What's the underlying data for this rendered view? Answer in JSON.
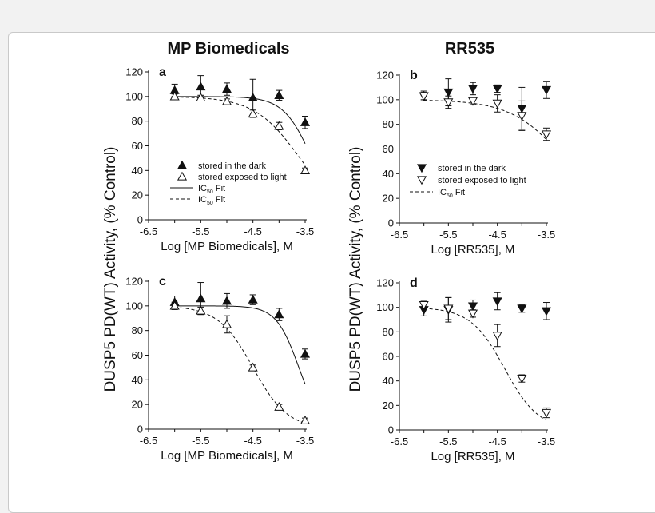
{
  "colors": {
    "ink": "#111111",
    "frame_border": "#c9c9c9",
    "background": "#ffffff"
  },
  "column_titles": [
    "MP Biomedicals",
    "RR535"
  ],
  "y_axis_label": "DUSP5 PD(WT) Activity, (% Control)",
  "chart_data": [
    {
      "id": "a",
      "type": "scatter",
      "letter": "a",
      "xlabel": "Log [MP Biomedicals], M",
      "xlim": [
        -6.5,
        -3.5
      ],
      "ylim": [
        0,
        120
      ],
      "xticks": [
        "-6.5",
        "-5.5",
        "-4.5",
        "-3.5"
      ],
      "yticks": [
        "0",
        "20",
        "40",
        "60",
        "80",
        "100",
        "120"
      ],
      "series": [
        {
          "name": "stored in the dark",
          "marker": "triangle-up-filled",
          "x": [
            -6.0,
            -5.5,
            -5.0,
            -4.5,
            -4.0,
            -3.5
          ],
          "y": [
            105,
            108,
            106,
            99,
            101,
            79
          ],
          "err": [
            5,
            9,
            5,
            15,
            4,
            5
          ],
          "fit": {
            "top": 100,
            "bottom": 0,
            "log_ic50": -3.37,
            "hill": 1.6,
            "style": "solid"
          }
        },
        {
          "name": "stored exposed to light",
          "marker": "triangle-up-open",
          "x": [
            -6.0,
            -5.5,
            -5.0,
            -4.5,
            -4.0,
            -3.5
          ],
          "y": [
            100,
            99,
            96,
            86,
            76,
            40
          ],
          "err": [
            2,
            2,
            2,
            3,
            3,
            2
          ],
          "fit": {
            "top": 100,
            "bottom": 0,
            "log_ic50": -3.6,
            "hill": 1.0,
            "style": "dashed"
          }
        }
      ],
      "legend": [
        {
          "kind": "marker-filled-up",
          "text": "stored in the dark"
        },
        {
          "kind": "marker-open-up",
          "text": "stored exposed to light"
        },
        {
          "kind": "line-solid",
          "text": "IC",
          "sub": "50",
          "suffix": " Fit"
        },
        {
          "kind": "line-dashed",
          "text": "IC",
          "sub": "50",
          "suffix": " Fit"
        }
      ]
    },
    {
      "id": "b",
      "type": "scatter",
      "letter": "b",
      "xlabel": "Log [RR535], M",
      "xlim": [
        -6.5,
        -3.5
      ],
      "ylim": [
        0,
        120
      ],
      "xticks": [
        "-6.5",
        "-5.5",
        "-4.5",
        "-3.5"
      ],
      "yticks": [
        "0",
        "20",
        "40",
        "60",
        "80",
        "100",
        "120"
      ],
      "series": [
        {
          "name": "stored in the dark",
          "marker": "triangle-down-filled",
          "x": [
            -6.0,
            -5.5,
            -5.0,
            -4.5,
            -4.0,
            -3.5
          ],
          "y": [
            103,
            106,
            109,
            109,
            93,
            108
          ],
          "err": [
            3,
            11,
            5,
            3,
            17,
            7
          ]
        },
        {
          "name": "stored exposed to light",
          "marker": "triangle-down-open",
          "x": [
            -6.0,
            -5.5,
            -5.0,
            -4.5,
            -4.0,
            -3.5
          ],
          "y": [
            103,
            98,
            99,
            97,
            87,
            72
          ],
          "err": [
            4,
            5,
            3,
            7,
            12,
            5
          ],
          "fit": {
            "top": 100,
            "bottom": 0,
            "log_ic50": -3.1,
            "hill": 0.8,
            "style": "dashed"
          }
        }
      ],
      "legend": [
        {
          "kind": "marker-filled-down",
          "text": "stored in the dark"
        },
        {
          "kind": "marker-open-down",
          "text": "stored exposed to light"
        },
        {
          "kind": "line-dashed",
          "text": "IC",
          "sub": "50",
          "suffix": " Fit"
        }
      ]
    },
    {
      "id": "c",
      "type": "scatter",
      "letter": "c",
      "xlabel": "Log [MP Biomedicals], M",
      "xlim": [
        -6.5,
        -3.5
      ],
      "ylim": [
        0,
        120
      ],
      "xticks": [
        "-6.5",
        "-5.5",
        "-4.5",
        "-3.5"
      ],
      "yticks": [
        "0",
        "20",
        "40",
        "60",
        "80",
        "100",
        "120"
      ],
      "series": [
        {
          "name": "stored in the dark",
          "marker": "triangle-up-filled",
          "x": [
            -6.0,
            -5.5,
            -5.0,
            -4.5,
            -4.0,
            -3.5
          ],
          "y": [
            103,
            106,
            104,
            105,
            93,
            61
          ],
          "err": [
            5,
            13,
            6,
            4,
            5,
            4
          ],
          "fit": {
            "top": 100,
            "bottom": 0,
            "log_ic50": -3.62,
            "hill": 2.0,
            "style": "solid"
          }
        },
        {
          "name": "stored exposed to light",
          "marker": "triangle-up-open",
          "x": [
            -6.0,
            -5.5,
            -5.0,
            -4.5,
            -4.0,
            -3.5
          ],
          "y": [
            100,
            96,
            85,
            50,
            18,
            7
          ],
          "err": [
            3,
            3,
            7,
            2,
            2,
            2
          ],
          "fit": {
            "top": 100,
            "bottom": 0,
            "log_ic50": -4.5,
            "hill": 1.3,
            "style": "dashed"
          }
        }
      ]
    },
    {
      "id": "d",
      "type": "scatter",
      "letter": "d",
      "xlabel": "Log [RR535], M",
      "xlim": [
        -6.5,
        -3.5
      ],
      "ylim": [
        0,
        120
      ],
      "xticks": [
        "-6.5",
        "-5.5",
        "-4.5",
        "-3.5"
      ],
      "yticks": [
        "0",
        "20",
        "40",
        "60",
        "80",
        "100",
        "120"
      ],
      "series": [
        {
          "name": "stored in the dark",
          "marker": "triangle-down-filled",
          "x": [
            -6.0,
            -5.5,
            -5.0,
            -4.5,
            -4.0,
            -3.5
          ],
          "y": [
            98,
            98,
            101,
            105,
            99,
            97
          ],
          "err": [
            5,
            10,
            5,
            7,
            3,
            7
          ]
        },
        {
          "name": "stored exposed to light",
          "marker": "triangle-down-open",
          "x": [
            -6.0,
            -5.5,
            -5.0,
            -4.5,
            -4.0,
            -3.5
          ],
          "y": [
            102,
            99,
            95,
            77,
            42,
            14
          ],
          "err": [
            3,
            9,
            3,
            9,
            3,
            4
          ],
          "fit": {
            "top": 100,
            "bottom": 0,
            "log_ic50": -4.35,
            "hill": 1.25,
            "style": "dashed"
          }
        }
      ]
    }
  ]
}
